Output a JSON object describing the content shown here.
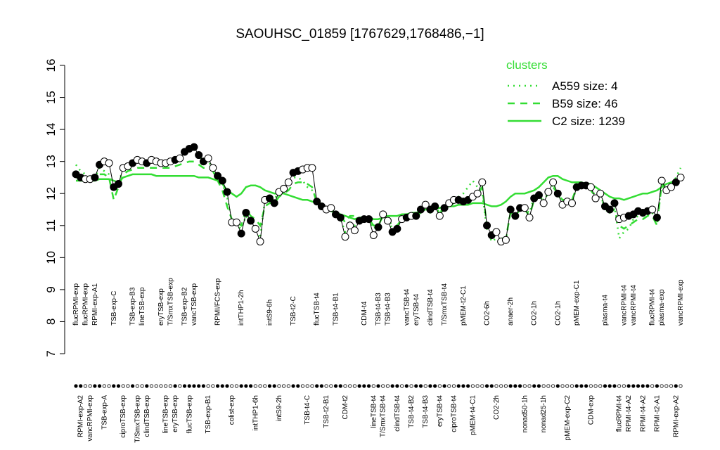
{
  "chart_data": {
    "type": "line",
    "title": "SAOUHSC_01859 [1767629,1768486,−1]",
    "legend_title": "clusters",
    "ylim": [
      7,
      16
    ],
    "yticks": [
      7,
      8,
      9,
      10,
      11,
      12,
      13,
      14,
      15,
      16
    ],
    "categories": [
      "flucRPMI-exp",
      "RPMI-exp-A2",
      "flucRPMI-exp",
      "vancRPMI-exp",
      "RPMI-exp-A1",
      null,
      "TSB-exp-A",
      null,
      "TSB-exp-C",
      null,
      "ciproTSB-exp",
      null,
      "TSB-exp-B3",
      "T/SmxTSB-exp",
      "lineTSB-exp",
      "clindTSB-exp",
      null,
      null,
      "eryTSB-exp",
      "lineTSB-exp",
      "T/SmxTSB-exp",
      "eryTSB-exp",
      null,
      "TSB-exp-B2",
      "flucTSB-exp",
      "vancTSB-exp",
      null,
      null,
      "TSB-exp-B1",
      null,
      "RPMI/FCS-exp",
      null,
      null,
      "colist-exp",
      null,
      "intTHP1-2h",
      null,
      null,
      "intTHP1-6h",
      null,
      null,
      "intS9-6h",
      null,
      "intS9-2h",
      null,
      null,
      "TSB-t2-C",
      null,
      null,
      "TSB-t4-C",
      null,
      "flucTSB-t4",
      null,
      "TSB-t2-B1",
      null,
      "TSB-t4-B1",
      null,
      "CDM-t2",
      null,
      null,
      null,
      "CDM-t4",
      null,
      "lineTSB-t4",
      "TSB-t4-B3",
      "T/SmxTSB-t4",
      "TSB-t4-B3",
      null,
      "clindTSB-t4",
      null,
      "vancTSB-t4",
      "TSB-t4-B2",
      "eryTSB-t4",
      null,
      "TSB-t4-B3",
      "clindTSB-t4",
      null,
      "eryTSB-t4",
      "T/SmxTSB-t4",
      null,
      "ciproTSB-t4",
      null,
      "pMEM-t2-C1",
      null,
      "pMEM-t4-C1",
      null,
      null,
      "CO2-6h",
      null,
      "CO2-2h",
      null,
      null,
      "anaer-2h",
      null,
      null,
      "nonad50-1h",
      null,
      "CO2-1h",
      null,
      "nonad25-1h",
      null,
      null,
      "CO2-1h",
      null,
      "pMEM-exp-C2",
      null,
      "pMEM-exp-C1",
      null,
      null,
      "CDM-exp",
      null,
      null,
      "plasma-t4",
      null,
      null,
      "flucRPMI-t4",
      "vancRPMI-t4",
      "RPMI-t4-A2",
      "vancRPMI-t4",
      null,
      "RPMI-t4-A2",
      null,
      "flucRPMI-t4",
      "RPMI-t2-A1",
      "plasma-exp",
      null,
      null,
      "RPMI-exp-A2",
      "vancRPMI-exp"
    ],
    "values": [
      12.6,
      12.5,
      12.45,
      12.45,
      12.5,
      12.9,
      13.0,
      12.95,
      12.2,
      12.3,
      12.8,
      12.85,
      12.95,
      13.05,
      13.0,
      12.95,
      13.05,
      13.0,
      12.95,
      12.95,
      13.0,
      13.05,
      13.1,
      13.3,
      13.4,
      13.45,
      13.2,
      13.0,
      13.1,
      12.8,
      12.55,
      12.4,
      12.05,
      11.1,
      11.1,
      10.75,
      11.4,
      11.15,
      10.9,
      10.5,
      11.8,
      11.85,
      11.7,
      12.05,
      12.15,
      12.35,
      12.65,
      12.7,
      12.75,
      12.8,
      12.8,
      11.75,
      11.6,
      11.5,
      11.55,
      11.35,
      11.25,
      10.65,
      11.0,
      10.85,
      11.15,
      11.2,
      11.2,
      10.7,
      10.95,
      11.35,
      11.15,
      10.8,
      10.9,
      11.2,
      11.25,
      11.3,
      11.3,
      11.5,
      11.65,
      11.5,
      11.6,
      11.3,
      11.55,
      11.7,
      11.8,
      11.8,
      11.75,
      11.8,
      11.9,
      12.0,
      12.35,
      11.0,
      10.7,
      10.8,
      10.5,
      10.55,
      11.5,
      11.3,
      11.55,
      11.55,
      11.25,
      11.85,
      11.95,
      11.7,
      12.05,
      12.35,
      12.0,
      11.65,
      11.75,
      11.7,
      12.2,
      12.25,
      12.25,
      12.2,
      11.85,
      12.0,
      11.6,
      11.5,
      11.7,
      11.2,
      11.25,
      11.3,
      11.35,
      11.45,
      11.4,
      11.45,
      11.5,
      11.25,
      12.4,
      12.1,
      12.2,
      12.35,
      12.5
    ],
    "point_filled": [
      true,
      true,
      false,
      false,
      true,
      true,
      false,
      false,
      true,
      true,
      false,
      false,
      true,
      false,
      false,
      true,
      false,
      false,
      false,
      false,
      false,
      true,
      false,
      true,
      true,
      true,
      true,
      true,
      false,
      false,
      true,
      true,
      true,
      false,
      false,
      true,
      true,
      true,
      false,
      false,
      false,
      true,
      true,
      false,
      false,
      false,
      true,
      true,
      false,
      false,
      false,
      true,
      true,
      false,
      false,
      true,
      true,
      false,
      false,
      false,
      true,
      true,
      true,
      false,
      true,
      false,
      false,
      true,
      true,
      false,
      true,
      false,
      true,
      true,
      false,
      true,
      true,
      false,
      true,
      false,
      false,
      true,
      true,
      true,
      false,
      false,
      false,
      true,
      true,
      false,
      false,
      false,
      true,
      true,
      true,
      false,
      false,
      true,
      true,
      false,
      false,
      false,
      true,
      false,
      false,
      false,
      true,
      true,
      true,
      false,
      false,
      false,
      true,
      true,
      true,
      false,
      false,
      true,
      true,
      true,
      true,
      true,
      false,
      true,
      false,
      false,
      false,
      true,
      false
    ],
    "series": [
      {
        "name": "A559 size: 4",
        "color": "#33dd33",
        "style": "dotted",
        "values": [
          12.9,
          12.7,
          12.6,
          12.5,
          12.5,
          12.8,
          12.7,
          12.6,
          12.2,
          12.3,
          12.8,
          12.8,
          12.9,
          13.0,
          12.9,
          12.9,
          13.0,
          12.9,
          12.9,
          12.9,
          12.9,
          13.0,
          13.1,
          13.2,
          13.3,
          13.4,
          13.2,
          13.0,
          13.0,
          12.8,
          12.5,
          12.3,
          11.9,
          11.1,
          11.0,
          10.9,
          11.3,
          11.1,
          10.9,
          10.6,
          11.8,
          11.9,
          11.8,
          12.1,
          12.2,
          12.4,
          12.5,
          12.5,
          12.4,
          12.2,
          12.1,
          11.8,
          11.7,
          11.5,
          11.5,
          11.3,
          11.2,
          10.8,
          11.1,
          11.0,
          11.1,
          11.2,
          11.2,
          10.9,
          11.0,
          11.4,
          11.2,
          10.9,
          11.0,
          11.2,
          11.3,
          11.3,
          11.3,
          11.5,
          11.6,
          11.5,
          11.6,
          11.4,
          11.6,
          11.7,
          11.8,
          11.9,
          12.0,
          12.2,
          12.4,
          12.2,
          12.0,
          10.9,
          10.5,
          10.6,
          10.4,
          10.5,
          11.5,
          11.3,
          11.5,
          11.5,
          11.4,
          11.9,
          11.9,
          11.8,
          12.0,
          12.3,
          12.0,
          11.7,
          11.8,
          11.7,
          12.2,
          12.2,
          12.2,
          12.2,
          11.9,
          12.0,
          11.5,
          11.4,
          11.6,
          10.6,
          10.8,
          10.9,
          11.2,
          11.3,
          11.3,
          11.3,
          11.4,
          11.0,
          12.4,
          12.1,
          12.2,
          12.5,
          12.8
        ]
      },
      {
        "name": "B59 size: 46",
        "color": "#33dd33",
        "style": "dashed",
        "values": [
          12.5,
          12.5,
          12.5,
          12.45,
          12.5,
          12.6,
          12.6,
          12.5,
          11.8,
          12.2,
          12.6,
          12.7,
          12.75,
          12.8,
          12.8,
          12.8,
          12.8,
          12.8,
          12.8,
          12.8,
          12.8,
          12.85,
          12.9,
          12.95,
          13.0,
          13.0,
          12.9,
          12.8,
          12.8,
          12.7,
          12.4,
          12.1,
          11.6,
          11.2,
          11.1,
          11.0,
          11.5,
          11.3,
          11.2,
          11.0,
          11.6,
          11.7,
          11.7,
          11.9,
          12.0,
          12.1,
          12.3,
          12.35,
          12.35,
          12.3,
          12.2,
          11.7,
          11.6,
          11.5,
          11.5,
          11.4,
          11.3,
          11.1,
          11.3,
          11.3,
          11.2,
          11.2,
          11.2,
          11.0,
          11.0,
          11.3,
          11.2,
          11.0,
          11.0,
          11.2,
          11.2,
          11.3,
          11.3,
          11.4,
          11.5,
          11.4,
          11.5,
          11.4,
          11.5,
          11.6,
          11.7,
          11.8,
          11.8,
          11.8,
          11.9,
          12.0,
          12.2,
          11.0,
          10.8,
          10.8,
          10.6,
          10.6,
          11.4,
          11.3,
          11.5,
          11.5,
          11.3,
          11.8,
          11.9,
          11.8,
          12.0,
          12.2,
          12.0,
          11.8,
          11.8,
          11.8,
          12.2,
          12.2,
          12.2,
          12.1,
          11.9,
          12.0,
          11.5,
          11.4,
          11.5,
          11.0,
          10.9,
          11.0,
          11.1,
          11.2,
          11.2,
          11.3,
          11.3,
          11.0,
          12.3,
          12.1,
          12.2,
          12.4,
          12.6
        ]
      },
      {
        "name": "C2 size: 1239",
        "color": "#33dd33",
        "style": "solid",
        "values": [
          12.4,
          12.4,
          12.4,
          12.4,
          12.4,
          12.45,
          12.45,
          12.45,
          12.4,
          12.35,
          12.5,
          12.55,
          12.6,
          12.6,
          12.6,
          12.6,
          12.6,
          12.55,
          12.55,
          12.55,
          12.55,
          12.55,
          12.55,
          12.55,
          12.55,
          12.55,
          12.5,
          12.5,
          12.5,
          12.45,
          12.4,
          12.3,
          12.1,
          12.0,
          11.9,
          12.0,
          12.2,
          12.25,
          12.25,
          12.2,
          12.1,
          12.05,
          12.0,
          12.0,
          12.0,
          11.95,
          11.9,
          11.85,
          11.8,
          11.8,
          11.75,
          11.7,
          11.6,
          11.5,
          11.45,
          11.4,
          11.35,
          11.3,
          11.25,
          11.2,
          11.25,
          11.25,
          11.25,
          11.2,
          11.2,
          11.25,
          11.3,
          11.3,
          11.3,
          11.35,
          11.35,
          11.4,
          11.4,
          11.45,
          11.5,
          11.5,
          11.55,
          11.55,
          11.6,
          11.6,
          11.6,
          11.65,
          11.65,
          11.65,
          11.7,
          11.7,
          11.7,
          11.65,
          11.6,
          11.6,
          11.65,
          11.75,
          11.9,
          12.0,
          12.0,
          12.0,
          12.05,
          12.1,
          12.2,
          12.35,
          12.5,
          12.55,
          12.55,
          12.45,
          12.4,
          12.35,
          12.35,
          12.35,
          12.3,
          12.3,
          12.2,
          12.1,
          12.0,
          11.9,
          11.85,
          11.85,
          11.8,
          11.85,
          11.9,
          11.95,
          12.0,
          12.0,
          12.05,
          12.1,
          12.2,
          12.3,
          12.35,
          12.4,
          12.45
        ]
      }
    ]
  }
}
